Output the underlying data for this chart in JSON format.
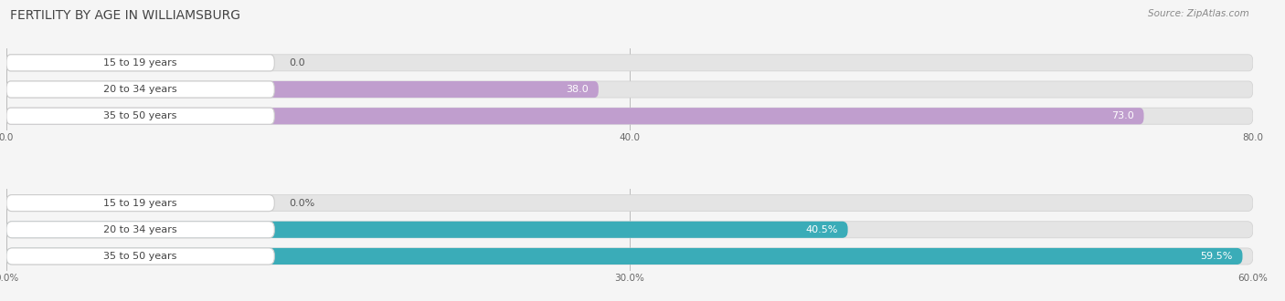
{
  "title": "FERTILITY BY AGE IN WILLIAMSBURG",
  "source": "Source: ZipAtlas.com",
  "top_chart": {
    "categories": [
      "15 to 19 years",
      "20 to 34 years",
      "35 to 50 years"
    ],
    "values": [
      0.0,
      38.0,
      73.0
    ],
    "max_value": 80.0,
    "xticks": [
      0.0,
      40.0,
      80.0
    ],
    "bar_color": "#c09ece",
    "bar_bg_color": "#e4e4e4",
    "bar_bg_border": "#d0d0d0"
  },
  "bottom_chart": {
    "categories": [
      "15 to 19 years",
      "20 to 34 years",
      "35 to 50 years"
    ],
    "values": [
      0.0,
      40.5,
      59.5
    ],
    "max_value": 60.0,
    "xticks": [
      0.0,
      30.0,
      60.0
    ],
    "bar_color": "#3aacb8",
    "bar_bg_color": "#e4e4e4",
    "bar_bg_border": "#d0d0d0"
  },
  "bg_color": "#f5f5f5",
  "title_fontsize": 10,
  "label_fontsize": 8,
  "value_fontsize": 8,
  "tick_fontsize": 7.5,
  "source_fontsize": 7.5
}
